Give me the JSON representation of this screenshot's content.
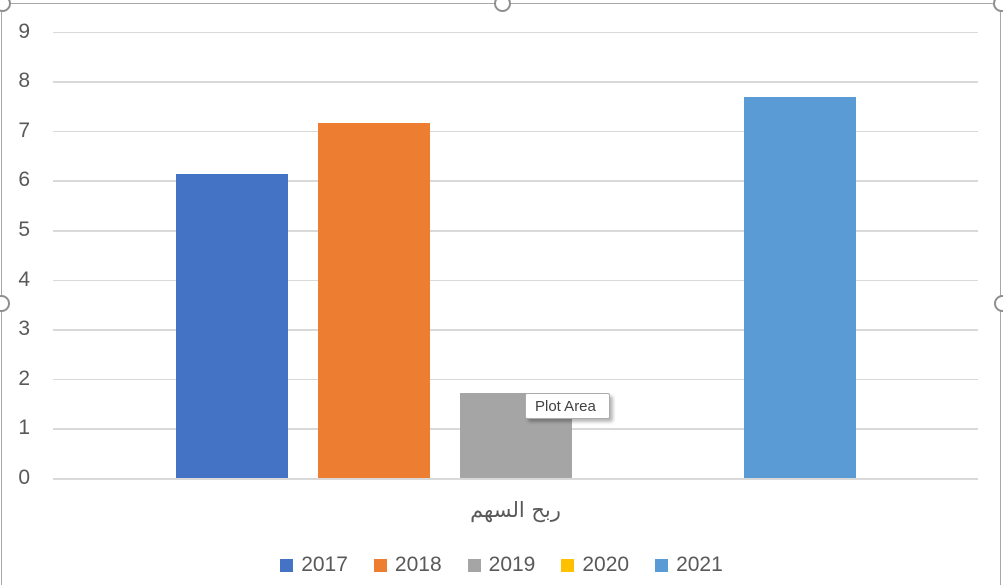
{
  "chart_data": {
    "type": "bar",
    "title": "",
    "categories": [
      "ربح السهم"
    ],
    "series": [
      {
        "name": "2017",
        "color": "#4472C4",
        "values": [
          6.12
        ]
      },
      {
        "name": "2018",
        "color": "#ED7D31",
        "values": [
          7.15
        ]
      },
      {
        "name": "2019",
        "color": "#A5A5A5",
        "values": [
          1.72
        ]
      },
      {
        "name": "2020",
        "color": "#FFC000",
        "values": [
          0
        ]
      },
      {
        "name": "2021",
        "color": "#5B9BD5",
        "values": [
          7.68
        ]
      }
    ],
    "ylim": [
      0,
      9
    ],
    "yticks": [
      0,
      1,
      2,
      3,
      4,
      5,
      6,
      7,
      8,
      9
    ],
    "grid": true,
    "legend_position": "bottom"
  },
  "tooltip": {
    "label": "Plot Area"
  },
  "colors": {
    "gridline": "#D9D9D9",
    "axis_text": "#595959",
    "chart_border": "#A8A8A8",
    "tooltip_border": "#ABABAB",
    "handle_border": "#8F8F8F"
  },
  "selection": {
    "handles": [
      "top-left",
      "top-center",
      "top-right",
      "left-middle",
      "right-middle"
    ]
  }
}
